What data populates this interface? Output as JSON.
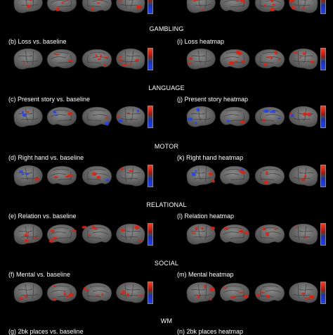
{
  "sections": [
    {
      "task": "",
      "left": {
        "letter": "",
        "title": ""
      },
      "right": {
        "letter": "",
        "title": ""
      }
    },
    {
      "task": "GAMBLING",
      "left": {
        "letter": "(b)",
        "title": "Loss vs. baseline"
      },
      "right": {
        "letter": "(i)",
        "title": "Loss heatmap"
      }
    },
    {
      "task": "LANGUAGE",
      "left": {
        "letter": "(c)",
        "title": "Present story vs. baseline"
      },
      "right": {
        "letter": "(j)",
        "title": "Present story heatmap"
      }
    },
    {
      "task": "MOTOR",
      "left": {
        "letter": "(d)",
        "title": "Right hand vs. baseline"
      },
      "right": {
        "letter": "(k)",
        "title": "Right hand heatmap"
      }
    },
    {
      "task": "RELATIONAL",
      "left": {
        "letter": "(e)",
        "title": "Relation vs. baseline"
      },
      "right": {
        "letter": "(l)",
        "title": "Relation heatmap"
      }
    },
    {
      "task": "SOCIAL",
      "left": {
        "letter": "(f)",
        "title": "Mental vs. baseline"
      },
      "right": {
        "letter": "(m)",
        "title": "Mental heatmap"
      }
    },
    {
      "task": "WM",
      "left": {
        "letter": "(g)",
        "title": "2bk places vs. baseline"
      },
      "right": {
        "letter": "(n)",
        "title": "2bk places heatmap"
      }
    }
  ],
  "colors": {
    "background": "#000000",
    "brain_light": "#8a8a8a",
    "brain_dark": "#4a4a4a",
    "activation_pos": "#e02010",
    "activation_neg": "#2040ff"
  }
}
